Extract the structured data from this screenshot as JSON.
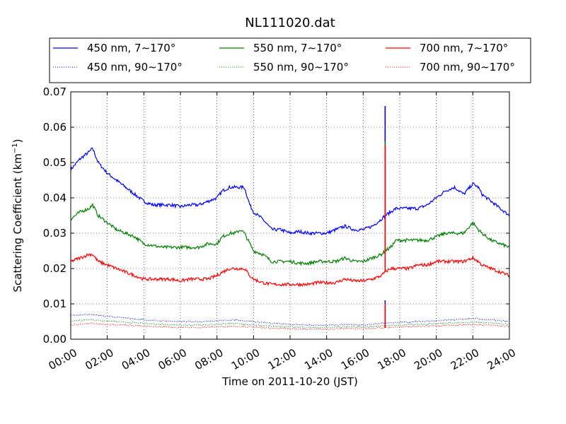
{
  "chart_data": {
    "type": "line",
    "title": "NL111020.dat",
    "xlabel": "Time on 2011-10-20 (JST)",
    "ylabel_main": "Scattering Coefficient (km",
    "ylabel_exp": "−1",
    "ylabel_close": ")",
    "xlim": [
      0,
      24
    ],
    "ylim": [
      0.0,
      0.07
    ],
    "grid": true,
    "legend_location": "top, above plot",
    "x_ticks": [
      0,
      2,
      4,
      6,
      8,
      10,
      12,
      14,
      16,
      18,
      20,
      22,
      24
    ],
    "x_tick_labels": [
      "00:00",
      "02:00",
      "04:00",
      "06:00",
      "08:00",
      "10:00",
      "12:00",
      "14:00",
      "16:00",
      "18:00",
      "20:00",
      "22:00",
      "24:00"
    ],
    "y_ticks": [
      0.0,
      0.01,
      0.02,
      0.03,
      0.04,
      0.05,
      0.06,
      0.07
    ],
    "y_tick_labels": [
      "0.00",
      "0.01",
      "0.02",
      "0.03",
      "0.04",
      "0.05",
      "0.06",
      "0.07"
    ],
    "series": [
      {
        "name": "450 nm, 7∼170°",
        "color": "#0000ff",
        "style": "solid",
        "x": [
          0,
          0.5,
          1,
          1.2,
          1.5,
          2,
          2.5,
          3,
          3.5,
          4,
          4.5,
          5,
          5.5,
          6,
          6.5,
          7,
          7.5,
          8,
          8.3,
          8.7,
          9,
          9.3,
          9.5,
          9.8,
          10,
          10.5,
          11,
          11.5,
          12,
          12.5,
          13,
          13.5,
          14,
          14.5,
          15,
          15.5,
          16,
          16.5,
          17,
          17.2,
          17.5,
          17.8,
          18,
          18.5,
          19,
          19.5,
          20,
          20.5,
          21,
          21.5,
          22,
          22.3,
          22.5,
          23,
          23.5,
          24
        ],
        "y": [
          0.048,
          0.051,
          0.053,
          0.054,
          0.05,
          0.047,
          0.045,
          0.043,
          0.041,
          0.039,
          0.038,
          0.038,
          0.038,
          0.0375,
          0.038,
          0.038,
          0.039,
          0.04,
          0.042,
          0.043,
          0.043,
          0.043,
          0.043,
          0.038,
          0.036,
          0.034,
          0.031,
          0.031,
          0.03,
          0.0305,
          0.03,
          0.03,
          0.03,
          0.031,
          0.032,
          0.031,
          0.031,
          0.032,
          0.034,
          0.035,
          0.036,
          0.037,
          0.037,
          0.037,
          0.037,
          0.038,
          0.04,
          0.042,
          0.043,
          0.041,
          0.044,
          0.043,
          0.041,
          0.039,
          0.037,
          0.035
        ]
      },
      {
        "name": "550 nm, 7∼170°",
        "color": "#008000",
        "style": "solid",
        "x": [
          0,
          0.5,
          1,
          1.2,
          1.5,
          2,
          2.5,
          3,
          3.5,
          4,
          4.5,
          5,
          5.5,
          6,
          6.5,
          7,
          7.5,
          8,
          8.3,
          8.7,
          9,
          9.3,
          9.5,
          9.8,
          10,
          10.5,
          11,
          11.5,
          12,
          12.5,
          13,
          13.5,
          14,
          14.5,
          15,
          15.5,
          16,
          16.5,
          17,
          17.2,
          17.5,
          17.8,
          18,
          18.5,
          19,
          19.5,
          20,
          20.5,
          21,
          21.5,
          22,
          22.3,
          22.5,
          23,
          23.5,
          24
        ],
        "y": [
          0.034,
          0.036,
          0.037,
          0.038,
          0.035,
          0.033,
          0.031,
          0.03,
          0.029,
          0.027,
          0.0265,
          0.026,
          0.026,
          0.026,
          0.026,
          0.026,
          0.027,
          0.027,
          0.029,
          0.03,
          0.03,
          0.031,
          0.03,
          0.027,
          0.025,
          0.024,
          0.022,
          0.022,
          0.022,
          0.0215,
          0.0215,
          0.022,
          0.022,
          0.022,
          0.023,
          0.022,
          0.022,
          0.023,
          0.024,
          0.025,
          0.026,
          0.028,
          0.028,
          0.028,
          0.028,
          0.028,
          0.029,
          0.03,
          0.03,
          0.03,
          0.033,
          0.031,
          0.03,
          0.028,
          0.027,
          0.026
        ]
      },
      {
        "name": "700 nm, 7∼170°",
        "color": "#ff0000",
        "style": "solid",
        "x": [
          0,
          0.5,
          1,
          1.2,
          1.5,
          2,
          2.5,
          3,
          3.5,
          4,
          4.5,
          5,
          5.5,
          6,
          6.5,
          7,
          7.5,
          8,
          8.3,
          8.7,
          9,
          9.3,
          9.5,
          9.8,
          10,
          10.5,
          11,
          11.5,
          12,
          12.5,
          13,
          13.5,
          14,
          14.5,
          15,
          15.5,
          16,
          16.5,
          17,
          17.2,
          17.5,
          17.8,
          18,
          18.5,
          19,
          19.5,
          20,
          20.5,
          21,
          21.5,
          22,
          22.3,
          22.5,
          23,
          23.5,
          24
        ],
        "y": [
          0.022,
          0.023,
          0.024,
          0.024,
          0.022,
          0.021,
          0.02,
          0.019,
          0.018,
          0.017,
          0.017,
          0.017,
          0.017,
          0.0165,
          0.017,
          0.017,
          0.017,
          0.018,
          0.019,
          0.02,
          0.02,
          0.02,
          0.02,
          0.018,
          0.017,
          0.016,
          0.0155,
          0.0155,
          0.0155,
          0.0155,
          0.0155,
          0.016,
          0.016,
          0.016,
          0.017,
          0.0165,
          0.0165,
          0.017,
          0.018,
          0.019,
          0.02,
          0.02,
          0.02,
          0.02,
          0.021,
          0.021,
          0.022,
          0.022,
          0.022,
          0.022,
          0.023,
          0.022,
          0.021,
          0.02,
          0.019,
          0.018
        ]
      },
      {
        "name": "450 nm, 90∼170°",
        "color": "#0000ff",
        "style": "dotted",
        "x": [
          0,
          1,
          2,
          3,
          4,
          5,
          6,
          7,
          8,
          9,
          10,
          11,
          12,
          13,
          14,
          15,
          16,
          17,
          18,
          19,
          20,
          21,
          22,
          23,
          24
        ],
        "y": [
          0.0068,
          0.007,
          0.0065,
          0.006,
          0.0055,
          0.0052,
          0.005,
          0.005,
          0.0052,
          0.0055,
          0.005,
          0.0045,
          0.0042,
          0.004,
          0.004,
          0.0042,
          0.004,
          0.0045,
          0.0048,
          0.005,
          0.0052,
          0.0055,
          0.0058,
          0.0055,
          0.005
        ]
      },
      {
        "name": "550 nm, 90∼170°",
        "color": "#008000",
        "style": "dotted",
        "x": [
          0,
          1,
          2,
          3,
          4,
          5,
          6,
          7,
          8,
          9,
          10,
          11,
          12,
          13,
          14,
          15,
          16,
          17,
          18,
          19,
          20,
          21,
          22,
          23,
          24
        ],
        "y": [
          0.005,
          0.0055,
          0.0052,
          0.0048,
          0.0045,
          0.0042,
          0.004,
          0.004,
          0.0042,
          0.0045,
          0.004,
          0.0037,
          0.0035,
          0.0033,
          0.0033,
          0.0035,
          0.0034,
          0.0038,
          0.004,
          0.0042,
          0.0044,
          0.0046,
          0.0048,
          0.0046,
          0.0042
        ]
      },
      {
        "name": "700 nm, 90∼170°",
        "color": "#ff0000",
        "style": "dotted",
        "x": [
          0,
          1,
          2,
          3,
          4,
          5,
          6,
          7,
          8,
          9,
          10,
          11,
          12,
          13,
          14,
          15,
          16,
          17,
          18,
          19,
          20,
          21,
          22,
          23,
          24
        ],
        "y": [
          0.004,
          0.0045,
          0.0042,
          0.004,
          0.0037,
          0.0035,
          0.0033,
          0.0033,
          0.0035,
          0.0037,
          0.0034,
          0.0031,
          0.003,
          0.0028,
          0.0028,
          0.003,
          0.0029,
          0.0032,
          0.0034,
          0.0036,
          0.0038,
          0.004,
          0.0041,
          0.004,
          0.0036
        ]
      }
    ],
    "spike": {
      "x": 17.2,
      "peaks": [
        {
          "color": "#0000ff",
          "from": 0.035,
          "to": 0.066
        },
        {
          "color": "#008000",
          "from": 0.025,
          "to": 0.056
        },
        {
          "color": "#ff0000",
          "from": 0.019,
          "to": 0.055
        },
        {
          "color": "#0000ff",
          "from": 0.0045,
          "to": 0.011
        },
        {
          "color": "#ff0000",
          "from": 0.0032,
          "to": 0.01
        }
      ]
    }
  }
}
